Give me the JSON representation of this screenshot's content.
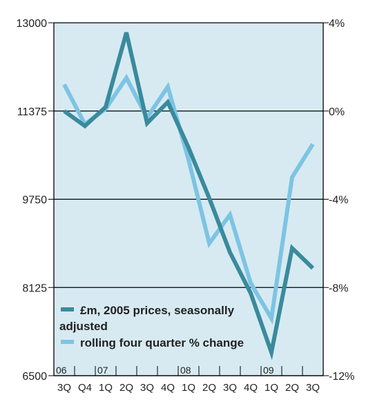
{
  "chart_data": {
    "type": "line",
    "background_color": "#d7eaf2",
    "grid": true,
    "grid_color": "#000000",
    "legend_position": "bottom-left",
    "x": [
      "3Q",
      "Q4",
      "1Q",
      "2Q",
      "3Q",
      "4Q",
      "1Q",
      "2Q",
      "3Q",
      "4Q",
      "1Q",
      "2Q",
      "3Q"
    ],
    "year_labels": [
      {
        "label": "06",
        "index": 0
      },
      {
        "label": "07",
        "index": 2
      },
      {
        "label": "08",
        "index": 6
      },
      {
        "label": "09",
        "index": 10
      }
    ],
    "y_left": {
      "ylim": [
        6500,
        13000
      ],
      "ticks": [
        "13000",
        "11375",
        "9750",
        "8125",
        "6500"
      ]
    },
    "y_right": {
      "ylim": [
        -12,
        4
      ],
      "ticks": [
        "4%",
        "0%",
        "-4%",
        "-8%",
        "-12%"
      ]
    },
    "series": [
      {
        "name": "£m, 2005 prices, seasonally adjusted",
        "axis": "left",
        "color": "#3a8a9d",
        "values": [
          11375,
          11100,
          11450,
          12820,
          11150,
          11540,
          10700,
          9770,
          8770,
          8020,
          6930,
          8850,
          8480
        ]
      },
      {
        "name": "rolling four quarter % change",
        "axis": "right",
        "color": "#7dc4e3",
        "values": [
          1.2,
          -0.6,
          0.1,
          1.5,
          -0.3,
          1.1,
          -2.2,
          -6.0,
          -4.7,
          -7.8,
          -9.4,
          -3.0,
          -1.5
        ]
      }
    ],
    "legend": [
      {
        "label_line1": "£m, 2005 prices, seasonally",
        "label_line2": "adjusted",
        "color": "#3a8a9d"
      },
      {
        "label_line1": "rolling four quarter % change",
        "color": "#7dc4e3"
      }
    ]
  }
}
